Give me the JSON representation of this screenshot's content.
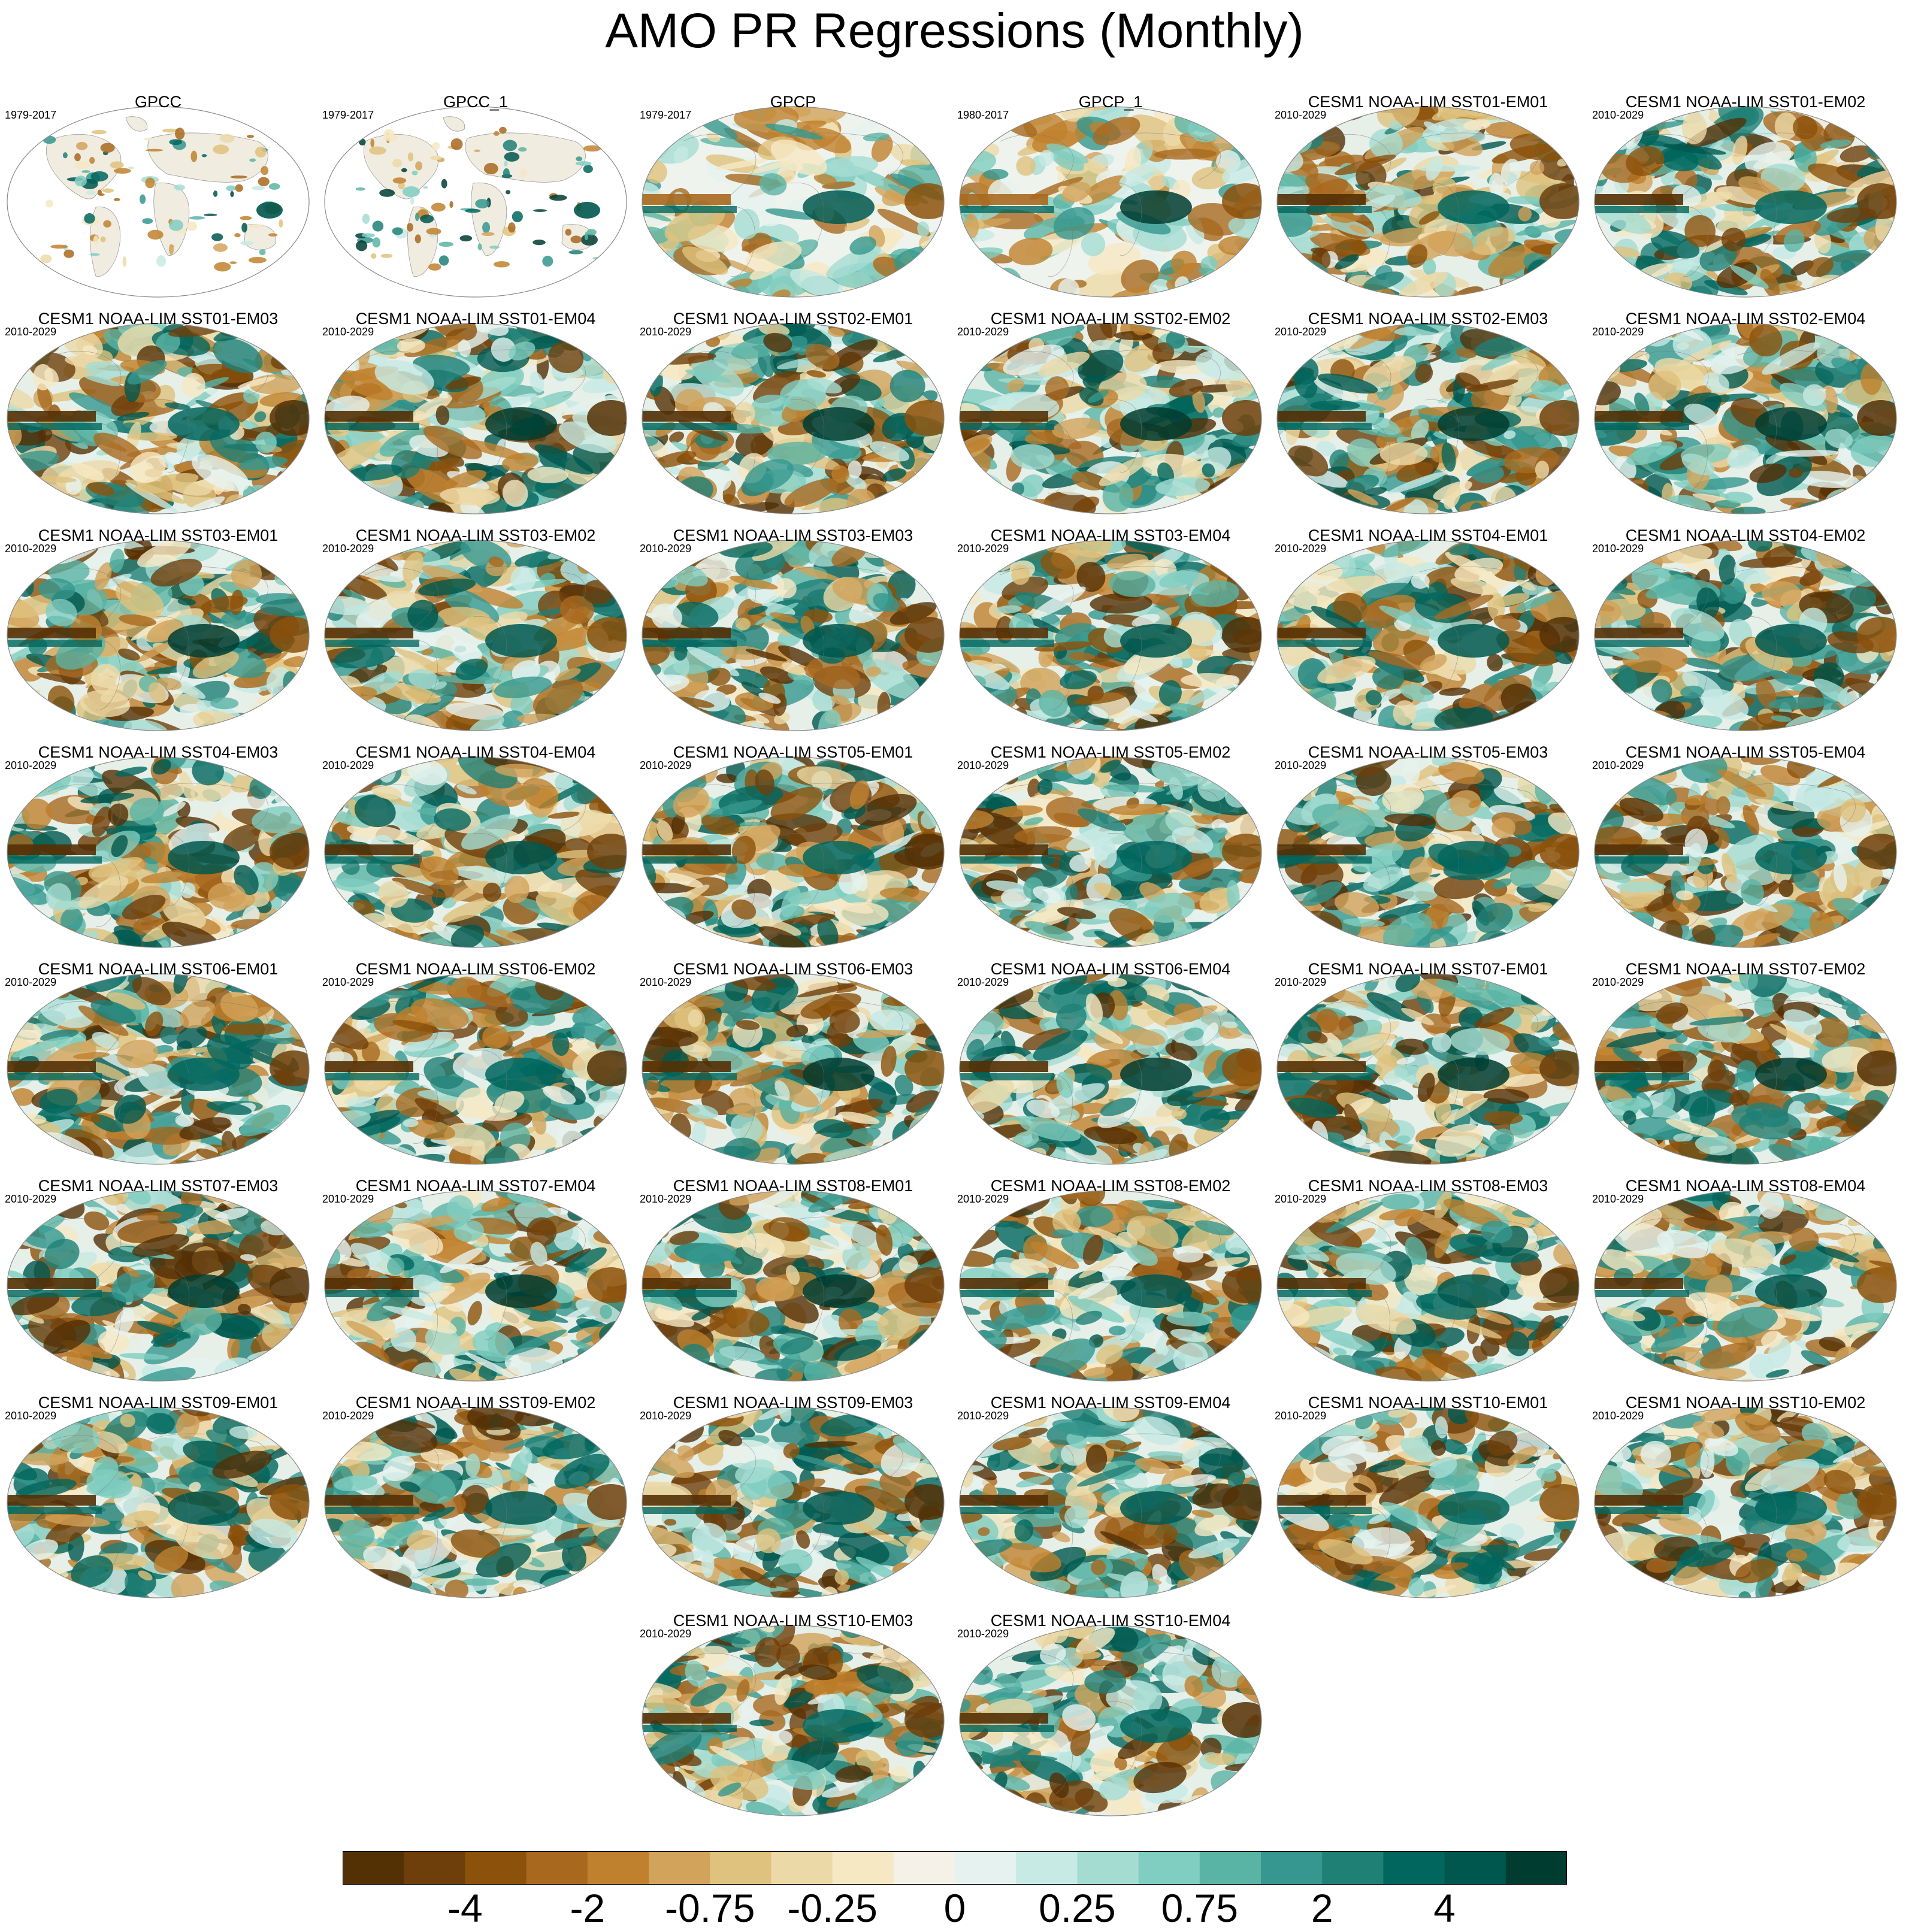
{
  "title": "AMO PR Regressions (Monthly)",
  "panels": [
    {
      "title": "GPCC",
      "period": "1979-2017",
      "kind": "land"
    },
    {
      "title": "GPCC_1",
      "period": "1979-2017",
      "kind": "land"
    },
    {
      "title": "GPCP",
      "period": "1979-2017",
      "kind": "obs"
    },
    {
      "title": "GPCP_1",
      "period": "1980-2017",
      "kind": "obs"
    },
    {
      "title": "CESM1 NOAA-LIM SST01-EM01",
      "period": "2010-2029",
      "kind": "model"
    },
    {
      "title": "CESM1 NOAA-LIM SST01-EM02",
      "period": "2010-2029",
      "kind": "model"
    },
    {
      "title": "CESM1 NOAA-LIM SST01-EM03",
      "period": "2010-2029",
      "kind": "model"
    },
    {
      "title": "CESM1 NOAA-LIM SST01-EM04",
      "period": "2010-2029",
      "kind": "model"
    },
    {
      "title": "CESM1 NOAA-LIM SST02-EM01",
      "period": "2010-2029",
      "kind": "model"
    },
    {
      "title": "CESM1 NOAA-LIM SST02-EM02",
      "period": "2010-2029",
      "kind": "model"
    },
    {
      "title": "CESM1 NOAA-LIM SST02-EM03",
      "period": "2010-2029",
      "kind": "model"
    },
    {
      "title": "CESM1 NOAA-LIM SST02-EM04",
      "period": "2010-2029",
      "kind": "model"
    },
    {
      "title": "CESM1 NOAA-LIM SST03-EM01",
      "period": "2010-2029",
      "kind": "model"
    },
    {
      "title": "CESM1 NOAA-LIM SST03-EM02",
      "period": "2010-2029",
      "kind": "model"
    },
    {
      "title": "CESM1 NOAA-LIM SST03-EM03",
      "period": "2010-2029",
      "kind": "model"
    },
    {
      "title": "CESM1 NOAA-LIM SST03-EM04",
      "period": "2010-2029",
      "kind": "model"
    },
    {
      "title": "CESM1 NOAA-LIM SST04-EM01",
      "period": "2010-2029",
      "kind": "model"
    },
    {
      "title": "CESM1 NOAA-LIM SST04-EM02",
      "period": "2010-2029",
      "kind": "model"
    },
    {
      "title": "CESM1 NOAA-LIM SST04-EM03",
      "period": "2010-2029",
      "kind": "model"
    },
    {
      "title": "CESM1 NOAA-LIM SST04-EM04",
      "period": "2010-2029",
      "kind": "model"
    },
    {
      "title": "CESM1 NOAA-LIM SST05-EM01",
      "period": "2010-2029",
      "kind": "model"
    },
    {
      "title": "CESM1 NOAA-LIM SST05-EM02",
      "period": "2010-2029",
      "kind": "model"
    },
    {
      "title": "CESM1 NOAA-LIM SST05-EM03",
      "period": "2010-2029",
      "kind": "model"
    },
    {
      "title": "CESM1 NOAA-LIM SST05-EM04",
      "period": "2010-2029",
      "kind": "model"
    },
    {
      "title": "CESM1 NOAA-LIM SST06-EM01",
      "period": "2010-2029",
      "kind": "model"
    },
    {
      "title": "CESM1 NOAA-LIM SST06-EM02",
      "period": "2010-2029",
      "kind": "model"
    },
    {
      "title": "CESM1 NOAA-LIM SST06-EM03",
      "period": "2010-2029",
      "kind": "model"
    },
    {
      "title": "CESM1 NOAA-LIM SST06-EM04",
      "period": "2010-2029",
      "kind": "model"
    },
    {
      "title": "CESM1 NOAA-LIM SST07-EM01",
      "period": "2010-2029",
      "kind": "model"
    },
    {
      "title": "CESM1 NOAA-LIM SST07-EM02",
      "period": "2010-2029",
      "kind": "model"
    },
    {
      "title": "CESM1 NOAA-LIM SST07-EM03",
      "period": "2010-2029",
      "kind": "model"
    },
    {
      "title": "CESM1 NOAA-LIM SST07-EM04",
      "period": "2010-2029",
      "kind": "model"
    },
    {
      "title": "CESM1 NOAA-LIM SST08-EM01",
      "period": "2010-2029",
      "kind": "model"
    },
    {
      "title": "CESM1 NOAA-LIM SST08-EM02",
      "period": "2010-2029",
      "kind": "model"
    },
    {
      "title": "CESM1 NOAA-LIM SST08-EM03",
      "period": "2010-2029",
      "kind": "model"
    },
    {
      "title": "CESM1 NOAA-LIM SST08-EM04",
      "period": "2010-2029",
      "kind": "model"
    },
    {
      "title": "CESM1 NOAA-LIM SST09-EM01",
      "period": "2010-2029",
      "kind": "model"
    },
    {
      "title": "CESM1 NOAA-LIM SST09-EM02",
      "period": "2010-2029",
      "kind": "model"
    },
    {
      "title": "CESM1 NOAA-LIM SST09-EM03",
      "period": "2010-2029",
      "kind": "model"
    },
    {
      "title": "CESM1 NOAA-LIM SST09-EM04",
      "period": "2010-2029",
      "kind": "model"
    },
    {
      "title": "CESM1 NOAA-LIM SST10-EM01",
      "period": "2010-2029",
      "kind": "model"
    },
    {
      "title": "CESM1 NOAA-LIM SST10-EM02",
      "period": "2010-2029",
      "kind": "model"
    },
    {
      "title": "CESM1 NOAA-LIM SST10-EM03",
      "period": "2010-2029",
      "kind": "model"
    },
    {
      "title": "CESM1 NOAA-LIM SST10-EM04",
      "period": "2010-2029",
      "kind": "model"
    }
  ],
  "colorbar": {
    "colors": [
      "#543005",
      "#6e3f0a",
      "#8c510a",
      "#a8691f",
      "#bf812d",
      "#d2a35a",
      "#dfc27d",
      "#ecd9a8",
      "#f6e8c3",
      "#f5f1e8",
      "#e6f2ef",
      "#c7eae5",
      "#a5dcd2",
      "#80cdc1",
      "#5ab4a5",
      "#35978f",
      "#1f8075",
      "#01665e",
      "#00574e",
      "#003c30"
    ],
    "labels": [
      "-4",
      "-2",
      "-0.75",
      "-0.25",
      "0",
      "0.25",
      "0.75",
      "2",
      "4"
    ]
  }
}
